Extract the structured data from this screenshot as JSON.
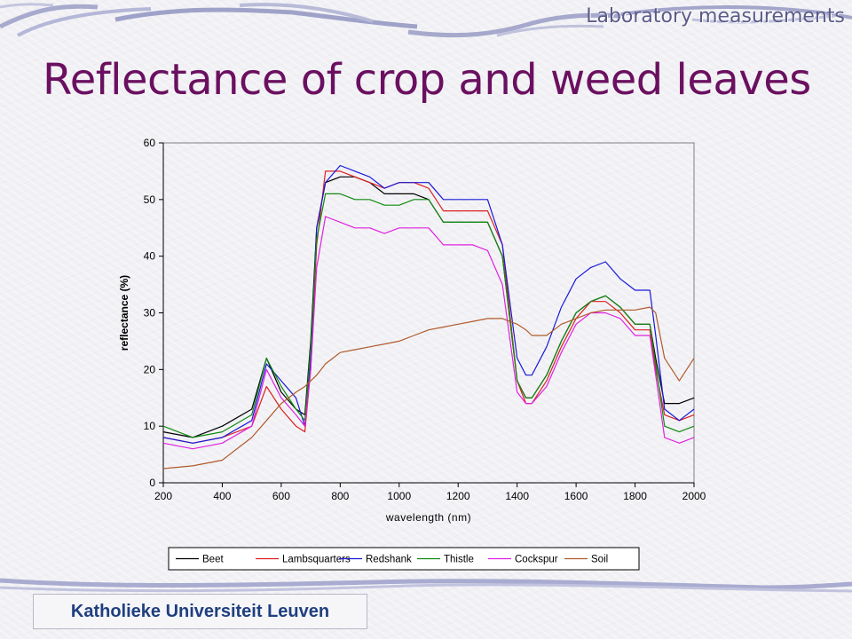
{
  "header": {
    "section_label": "Laboratory measurements"
  },
  "slide": {
    "title": "Reflectance of crop and weed leaves"
  },
  "footer": {
    "institution": "Katholieke Universiteit Leuven"
  },
  "chart_data": {
    "type": "line",
    "title": "",
    "xlabel": "wavelength (nm)",
    "ylabel": "reflectance (%)",
    "xlim": [
      200,
      2000
    ],
    "ylim": [
      0,
      60
    ],
    "xticks": [
      200,
      400,
      600,
      800,
      1000,
      1200,
      1400,
      1600,
      1800,
      2000
    ],
    "yticks": [
      0,
      10,
      20,
      30,
      40,
      50,
      60
    ],
    "grid": false,
    "legend_position": "bottom",
    "x": [
      200,
      300,
      400,
      500,
      550,
      600,
      650,
      680,
      700,
      720,
      750,
      800,
      850,
      900,
      950,
      1000,
      1050,
      1100,
      1150,
      1200,
      1250,
      1300,
      1350,
      1400,
      1430,
      1450,
      1500,
      1550,
      1600,
      1650,
      1700,
      1750,
      1800,
      1850,
      1870,
      1900,
      1950,
      2000
    ],
    "series": [
      {
        "name": "Beet",
        "color": "#000000",
        "values": [
          9,
          8,
          10,
          13,
          22,
          16,
          13,
          12,
          25,
          45,
          53,
          54,
          54,
          53,
          51,
          51,
          51,
          50,
          46,
          46,
          46,
          46,
          40,
          18,
          15,
          15,
          19,
          25,
          30,
          32,
          33,
          31,
          28,
          28,
          22,
          14,
          14,
          15
        ]
      },
      {
        "name": "Lambsquarters",
        "color": "#dd2020",
        "values": [
          8,
          7,
          8,
          10,
          17,
          13,
          10,
          9,
          20,
          42,
          55,
          55,
          54,
          53,
          52,
          53,
          53,
          52,
          48,
          48,
          48,
          48,
          42,
          18,
          14,
          14,
          18,
          24,
          29,
          32,
          32,
          30,
          27,
          27,
          20,
          12,
          11,
          12
        ]
      },
      {
        "name": "Redshank",
        "color": "#1a1ad8",
        "values": [
          8,
          7,
          8,
          11,
          21,
          18,
          15,
          10,
          22,
          45,
          53,
          56,
          55,
          54,
          52,
          53,
          53,
          53,
          50,
          50,
          50,
          50,
          42,
          22,
          19,
          19,
          24,
          31,
          36,
          38,
          39,
          36,
          34,
          34,
          26,
          13,
          11,
          13
        ]
      },
      {
        "name": "Thistle",
        "color": "#108a10",
        "values": [
          10,
          8,
          9,
          12,
          22,
          17,
          13,
          11,
          24,
          43,
          51,
          51,
          50,
          50,
          49,
          49,
          50,
          50,
          46,
          46,
          46,
          46,
          40,
          18,
          15,
          15,
          19,
          25,
          30,
          32,
          33,
          31,
          28,
          28,
          21,
          10,
          9,
          10
        ]
      },
      {
        "name": "Cockspur",
        "color": "#e020e0",
        "values": [
          7,
          6,
          7,
          10,
          20,
          15,
          12,
          10,
          20,
          38,
          47,
          46,
          45,
          45,
          44,
          45,
          45,
          45,
          42,
          42,
          42,
          41,
          35,
          16,
          14,
          14,
          17,
          23,
          28,
          30,
          30,
          29,
          26,
          26,
          19,
          8,
          7,
          8
        ]
      },
      {
        "name": "Soil",
        "color": "#b05a2a",
        "values": [
          2.5,
          3,
          4,
          8,
          11,
          14,
          16,
          17,
          18,
          19,
          21,
          23,
          23.5,
          24,
          24.5,
          25,
          26,
          27,
          27.5,
          28,
          28.5,
          29,
          29,
          28,
          27,
          26,
          26,
          28,
          29,
          30,
          30.5,
          30.5,
          30.5,
          31,
          30,
          22,
          18,
          22
        ]
      }
    ]
  }
}
